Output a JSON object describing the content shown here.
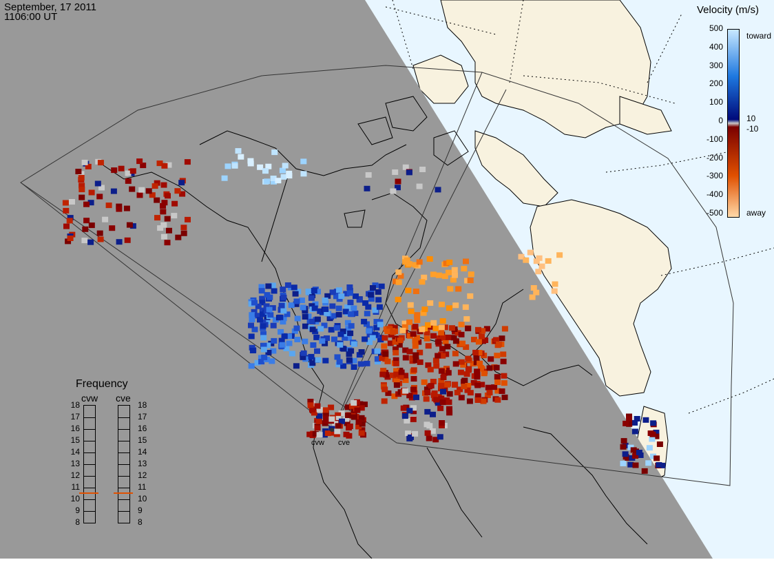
{
  "header": {
    "date": "September, 17 2011",
    "time": "1106:00 UT"
  },
  "colorbar": {
    "title": "Velocity (m/s)",
    "ticks": [
      "500",
      "400",
      "300",
      "200",
      "100",
      "0",
      "-100",
      "-200",
      "-300",
      "-400",
      "-500"
    ],
    "side_labels": {
      "toward": "toward",
      "away": "away",
      "plus_ten": "10",
      "minus_ten": "-10"
    },
    "colors": {
      "toward_max": "#c8e8ff",
      "toward_mid": "#1e78e0",
      "toward_min": "#000a7a",
      "zero": "#c8c8c8",
      "away_min": "#7a0000",
      "away_mid": "#e05000",
      "away_max": "#ffd9a8"
    }
  },
  "frequency_panel": {
    "title": "Frequency",
    "columns": [
      {
        "name": "cvw",
        "value": 11
      },
      {
        "name": "cve",
        "value": 11
      }
    ],
    "scale": [
      "18",
      "17",
      "16",
      "15",
      "14",
      "13",
      "12",
      "11",
      "10",
      "9",
      "8"
    ],
    "marker_color": "#e05000"
  },
  "radar_sites": [
    {
      "name": "cvw"
    },
    {
      "name": "cve"
    }
  ],
  "map": {
    "night_color": "#999999",
    "day_ocean_color": "#e8f6ff",
    "day_land_color": "#f8f2df",
    "coastline_color": "#000000"
  }
}
